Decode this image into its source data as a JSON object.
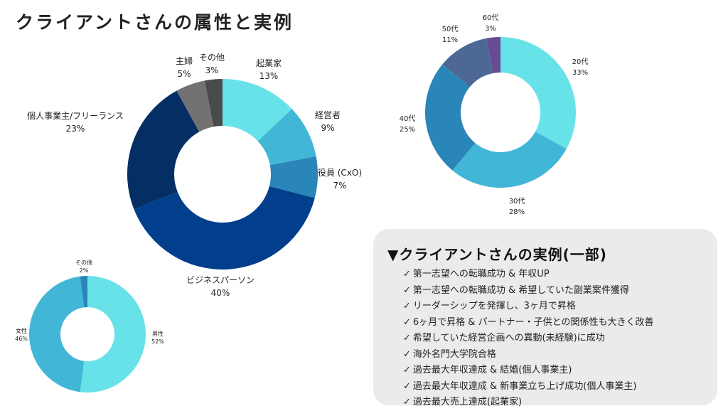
{
  "title": "クライアントさんの属性と実例",
  "chart_data": [
    {
      "type": "pie",
      "donut": true,
      "slices": [
        {
          "label": "起業家",
          "percent_text": "13%",
          "value": 13,
          "color": "#67e2e8"
        },
        {
          "label": "経営者",
          "percent_text": "9%",
          "value": 9,
          "color": "#41b6d7"
        },
        {
          "label": "役員 (CxO)",
          "percent_text": "7%",
          "value": 7,
          "color": "#2a86b8"
        },
        {
          "label": "ビジネスパーソン",
          "percent_text": "40%",
          "value": 40,
          "color": "#013f8d"
        },
        {
          "label": "個人事業主/フリーランス",
          "percent_text": "23%",
          "value": 23,
          "color": "#052f64"
        },
        {
          "label": "主婦",
          "percent_text": "5%",
          "value": 5,
          "color": "#727272"
        },
        {
          "label": "その他",
          "percent_text": "3%",
          "value": 3,
          "color": "#4a4a4a"
        }
      ]
    },
    {
      "type": "pie",
      "donut": true,
      "slices": [
        {
          "label": "20代",
          "percent_text": "33%",
          "value": 33,
          "color": "#67e2e8"
        },
        {
          "label": "30代",
          "percent_text": "28%",
          "value": 28,
          "color": "#41b6d7"
        },
        {
          "label": "40代",
          "percent_text": "25%",
          "value": 25,
          "color": "#2a86b8"
        },
        {
          "label": "50代",
          "percent_text": "11%",
          "value": 11,
          "color": "#4e6896"
        },
        {
          "label": "60代",
          "percent_text": "3%",
          "value": 3,
          "color": "#6b4a94"
        }
      ]
    },
    {
      "type": "pie",
      "donut": true,
      "slices": [
        {
          "label": "男性",
          "percent_text": "52%",
          "value": 52,
          "color": "#67e2e8"
        },
        {
          "label": "女性",
          "percent_text": "46%",
          "value": 46,
          "color": "#41b6d7"
        },
        {
          "label": "その他",
          "percent_text": "2%",
          "value": 2,
          "color": "#2a86b8"
        }
      ]
    }
  ],
  "examples": {
    "title": "▼クライアントさんの実例(一部)",
    "check_symbol": "✓",
    "items": [
      "第一志望への転職成功 & 年収UP",
      "第一志望への転職成功 & 希望していた副業案件獲得",
      "リーダーシップを発揮し、3ヶ月で昇格",
      "6ヶ月で昇格 & パートナー・子供との関係性も大きく改善",
      "希望していた経営企画への異動(未経験)に成功",
      "海外名門大学院合格",
      "過去最大年収達成 & 結婚(個人事業主)",
      "過去最大年収達成 & 新事業立ち上げ成功(個人事業主)",
      "過去最大売上達成(起業家)"
    ]
  }
}
